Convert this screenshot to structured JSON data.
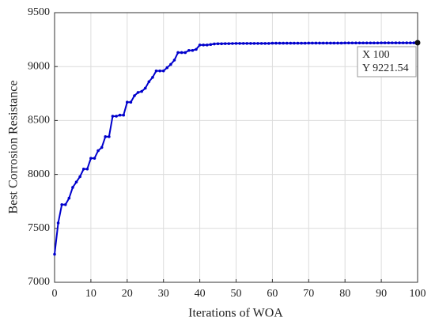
{
  "chart_data": {
    "type": "line",
    "xlabel": "Iterations of WOA",
    "ylabel": "Best Corrosion Resistance",
    "x": [
      0,
      1,
      2,
      3,
      4,
      5,
      6,
      7,
      8,
      9,
      10,
      11,
      12,
      13,
      14,
      15,
      16,
      17,
      18,
      19,
      20,
      21,
      22,
      23,
      24,
      25,
      26,
      27,
      28,
      29,
      30,
      31,
      32,
      33,
      34,
      35,
      36,
      37,
      38,
      39,
      40,
      41,
      42,
      43,
      44,
      45,
      46,
      47,
      48,
      49,
      50,
      51,
      52,
      53,
      54,
      55,
      56,
      57,
      58,
      59,
      60,
      61,
      62,
      63,
      64,
      65,
      66,
      67,
      68,
      69,
      70,
      71,
      72,
      73,
      74,
      75,
      76,
      77,
      78,
      79,
      80,
      81,
      82,
      83,
      84,
      85,
      86,
      87,
      88,
      89,
      90,
      91,
      92,
      93,
      94,
      95,
      96,
      97,
      98,
      99,
      100
    ],
    "series": [
      {
        "color": "#0000cc",
        "values": [
          7260,
          7550,
          7720,
          7720,
          7780,
          7880,
          7930,
          7980,
          8050,
          8050,
          8150,
          8150,
          8220,
          8250,
          8350,
          8350,
          8540,
          8540,
          8550,
          8550,
          8670,
          8670,
          8730,
          8760,
          8770,
          8800,
          8860,
          8900,
          8960,
          8960,
          8960,
          8990,
          9020,
          9060,
          9130,
          9130,
          9130,
          9150,
          9150,
          9160,
          9200,
          9200,
          9200,
          9205,
          9210,
          9212,
          9212,
          9213,
          9213,
          9214,
          9215,
          9215,
          9215,
          9215,
          9215,
          9215,
          9215,
          9215,
          9215,
          9215,
          9217,
          9217,
          9217,
          9217,
          9217,
          9217,
          9217,
          9217,
          9217,
          9217,
          9218,
          9218,
          9218,
          9218,
          9218,
          9218,
          9218,
          9218,
          9218,
          9218,
          9219,
          9219,
          9219,
          9219,
          9219,
          9219,
          9219,
          9219,
          9219,
          9219,
          9220,
          9220,
          9220,
          9220,
          9220,
          9220,
          9220,
          9220,
          9220,
          9220,
          9221.54
        ]
      }
    ],
    "xlim": [
      0,
      100
    ],
    "xticks": [
      0,
      10,
      20,
      30,
      40,
      50,
      60,
      70,
      80,
      90,
      100
    ],
    "ylim": [
      7000,
      9500
    ],
    "yticks": [
      7000,
      7500,
      8000,
      8500,
      9000,
      9500
    ],
    "grid": true,
    "datatip": [
      "X 100",
      "Y 9221.54"
    ]
  }
}
